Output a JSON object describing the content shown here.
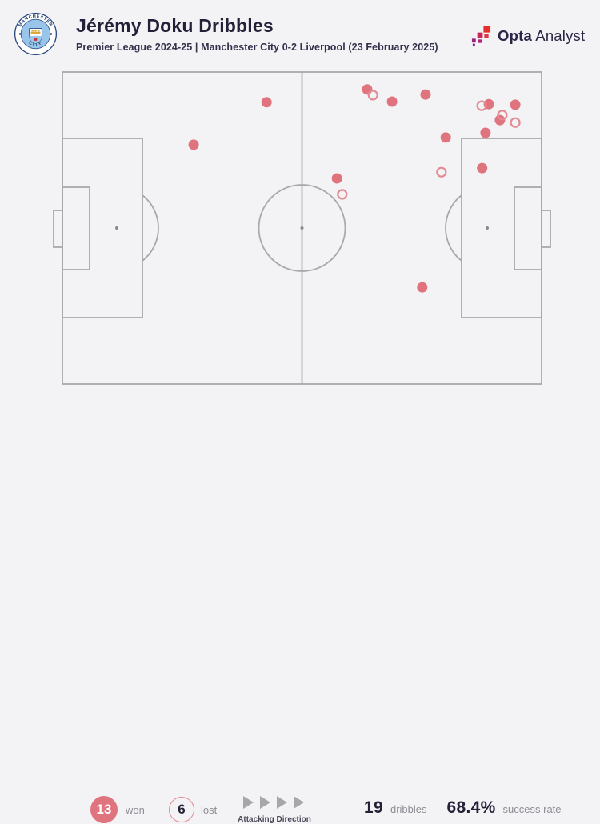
{
  "header": {
    "title": "Jérémy Doku Dribbles",
    "subtitle": "Premier League 2024-25 | Manchester City 0-2 Liverpool (23 February 2025)",
    "badge_club": "Manchester City",
    "badge_text_top": "MANCHESTER",
    "badge_text_bottom": "CITY"
  },
  "brand": {
    "name_bold": "Opta",
    "name_light": "Analyst",
    "text_color": "#2c2547",
    "mark_colors": [
      "#e5312d",
      "#c62758",
      "#97227f",
      "#dd3743",
      "#b1247a",
      "#6c2184"
    ]
  },
  "legend": {
    "won_count": "13",
    "won_label": "won",
    "lost_count": "6",
    "lost_label": "lost",
    "attacking_direction_label": "Attacking Direction",
    "dribbles_value": "19",
    "dribbles_label": "dribbles",
    "success_value": "68.4%",
    "success_label": "success rate"
  },
  "colors": {
    "background": "#f3f3f5",
    "pitch_fill": "#f8f8f9",
    "pitch_line": "#a8a8ab",
    "won_fill": "#e0747e",
    "lost_stroke": "#e38b94",
    "navy": "#242038",
    "subtitle": "#34304b",
    "gray_label": "#8f8d95",
    "direction_label": "#4c4858",
    "arrow": "#a7a7aa"
  },
  "chart_data": {
    "type": "scatter",
    "title": "Jérémy Doku Dribbles",
    "subtitle": "Premier League 2024-25 | Manchester City 0-2 Liverpool (23 February 2025)",
    "x_axis": "pitch length %, attacking left to right (0 = own goal line, 100 = opposition goal line)",
    "y_axis": "pitch width %, top to bottom",
    "legend_position": "bottom",
    "totals": {
      "won": 13,
      "lost": 6,
      "dribbles": 19,
      "success_rate": "68.4%"
    },
    "series": [
      {
        "name": "won",
        "marker": "filled-circle",
        "color": "#e0747e"
      },
      {
        "name": "lost",
        "marker": "open-circle",
        "color": "#e38b94"
      }
    ],
    "points": [
      {
        "x": 63.6,
        "y": 5.6,
        "outcome": "won"
      },
      {
        "x": 64.8,
        "y": 7.4,
        "outcome": "lost"
      },
      {
        "x": 68.8,
        "y": 9.5,
        "outcome": "won"
      },
      {
        "x": 75.8,
        "y": 7.2,
        "outcome": "won"
      },
      {
        "x": 87.5,
        "y": 10.8,
        "outcome": "lost"
      },
      {
        "x": 89.0,
        "y": 10.3,
        "outcome": "won"
      },
      {
        "x": 94.5,
        "y": 10.5,
        "outcome": "won"
      },
      {
        "x": 91.8,
        "y": 13.8,
        "outcome": "lost"
      },
      {
        "x": 91.3,
        "y": 15.4,
        "outcome": "won"
      },
      {
        "x": 94.5,
        "y": 16.2,
        "outcome": "lost"
      },
      {
        "x": 88.3,
        "y": 19.5,
        "outcome": "won"
      },
      {
        "x": 80.0,
        "y": 21.0,
        "outcome": "won"
      },
      {
        "x": 87.6,
        "y": 30.8,
        "outcome": "won"
      },
      {
        "x": 79.1,
        "y": 32.1,
        "outcome": "lost"
      },
      {
        "x": 75.1,
        "y": 69.0,
        "outcome": "won"
      },
      {
        "x": 42.6,
        "y": 9.7,
        "outcome": "won"
      },
      {
        "x": 27.4,
        "y": 23.3,
        "outcome": "won"
      },
      {
        "x": 57.3,
        "y": 34.1,
        "outcome": "won"
      },
      {
        "x": 58.4,
        "y": 39.2,
        "outcome": "lost"
      }
    ]
  }
}
